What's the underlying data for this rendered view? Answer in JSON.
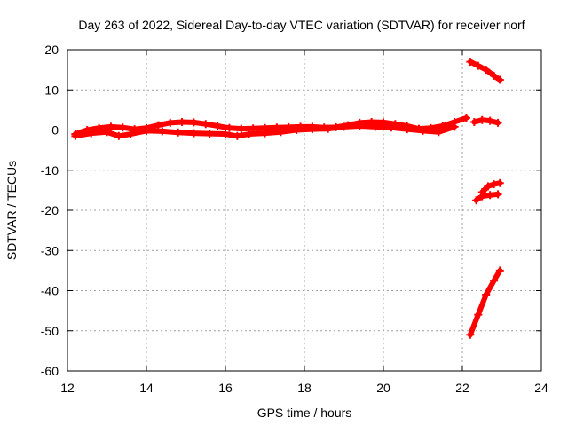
{
  "chart_data": {
    "type": "scatter",
    "title": "Day 263 of 2022, Sidereal Day-to-day VTEC variation (SDTVAR) for receiver norf",
    "xlabel": "GPS time / hours",
    "ylabel": "SDTVAR / TECUs",
    "xlim": [
      12,
      24
    ],
    "ylim": [
      -60,
      20
    ],
    "x_ticks": [
      12,
      14,
      16,
      18,
      20,
      22,
      24
    ],
    "y_ticks": [
      -60,
      -50,
      -40,
      -30,
      -20,
      -10,
      0,
      10,
      20
    ],
    "grid": true,
    "marker": "plus",
    "series_color": "#ff0000",
    "series": [
      {
        "x": [
          12.2,
          12.5,
          12.8,
          13.1,
          13.4,
          13.7,
          14.0,
          14.3,
          14.6,
          14.9,
          15.2,
          15.5,
          15.8,
          16.1,
          16.4,
          16.7,
          17.0,
          17.3,
          17.6,
          17.9,
          18.2,
          18.5,
          18.8,
          19.1,
          19.4,
          19.7,
          20.0,
          20.3,
          20.6,
          20.9,
          21.2,
          21.5,
          21.8,
          22.1
        ],
        "y": [
          -1.0,
          0.0,
          0.5,
          0.8,
          0.6,
          0.2,
          0.5,
          1.2,
          1.8,
          2.0,
          1.9,
          1.5,
          1.0,
          0.5,
          0.3,
          0.4,
          0.5,
          0.6,
          0.7,
          0.8,
          0.8,
          0.6,
          0.7,
          1.2,
          1.8,
          2.0,
          1.9,
          1.5,
          1.0,
          0.3,
          0.5,
          1.0,
          2.0,
          3.0
        ]
      },
      {
        "x": [
          12.2,
          12.6,
          13.0,
          13.3,
          13.6,
          14.0,
          14.4,
          14.8,
          15.2,
          15.6,
          16.0,
          16.3,
          16.6,
          17.0,
          17.4,
          17.8,
          18.2,
          18.6,
          19.0,
          19.4,
          19.8,
          20.2,
          20.6,
          21.0,
          21.4,
          21.8
        ],
        "y": [
          -1.5,
          -0.8,
          -0.5,
          -1.5,
          -1.0,
          -0.2,
          -0.3,
          -0.6,
          -0.8,
          -0.9,
          -1.0,
          -1.5,
          -1.0,
          -0.8,
          -0.5,
          0.0,
          0.2,
          0.3,
          0.8,
          1.0,
          0.8,
          0.6,
          0.2,
          -0.2,
          -0.5,
          0.8
        ]
      },
      {
        "x": [
          22.3,
          22.5,
          22.7,
          22.9
        ],
        "y": [
          2.0,
          2.5,
          2.3,
          1.8
        ]
      },
      {
        "x": [
          22.2,
          22.4,
          22.6,
          22.8,
          22.95
        ],
        "y": [
          17.0,
          16.0,
          15.0,
          13.5,
          12.5
        ]
      },
      {
        "x": [
          22.5,
          22.65,
          22.8,
          22.95
        ],
        "y": [
          -15.5,
          -14.0,
          -13.5,
          -13.2
        ]
      },
      {
        "x": [
          22.35,
          22.5,
          22.7,
          22.9
        ],
        "y": [
          -17.5,
          -16.5,
          -16.2,
          -16.0
        ]
      },
      {
        "x": [
          22.2,
          22.4,
          22.6,
          22.8,
          22.95
        ],
        "y": [
          -51.0,
          -46.0,
          -41.0,
          -37.5,
          -35.0
        ]
      }
    ]
  }
}
